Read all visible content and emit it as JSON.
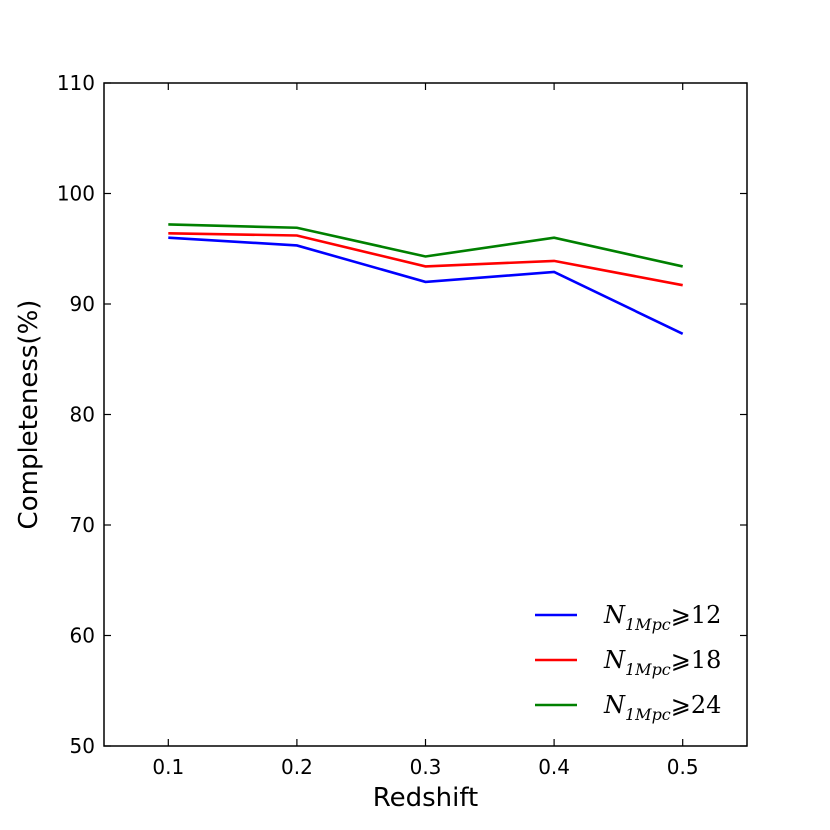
{
  "chart_data": {
    "type": "line",
    "title": "",
    "xlabel": "Redshift",
    "ylabel": "Completeness(%)",
    "x": [
      0.1,
      0.2,
      0.3,
      0.4,
      0.5
    ],
    "xlim": [
      0.05,
      0.55
    ],
    "ylim": [
      50,
      110
    ],
    "xticks": [
      0.1,
      0.2,
      0.3,
      0.4,
      0.5
    ],
    "xtick_labels": [
      "0.1",
      "0.2",
      "0.3",
      "0.4",
      "0.5"
    ],
    "yticks": [
      50,
      60,
      70,
      80,
      90,
      100,
      110
    ],
    "ytick_labels": [
      "50",
      "60",
      "70",
      "80",
      "90",
      "100",
      "110"
    ],
    "grid": false,
    "legend_position": "bottom-right",
    "series": [
      {
        "name": "N_{1Mpc}⩾12",
        "label_main": "N",
        "label_sub": "1Mpc",
        "label_rest": "⩾12",
        "color": "#0000ff",
        "values": [
          96.0,
          95.3,
          92.0,
          92.9,
          87.3
        ]
      },
      {
        "name": "N_{1Mpc}⩾18",
        "label_main": "N",
        "label_sub": "1Mpc",
        "label_rest": "⩾18",
        "color": "#ff0000",
        "values": [
          96.4,
          96.2,
          93.4,
          93.9,
          91.7
        ]
      },
      {
        "name": "N_{1Mpc}⩾24",
        "label_main": "N",
        "label_sub": "1Mpc",
        "label_rest": "⩾24",
        "color": "#008000",
        "values": [
          97.2,
          96.9,
          94.3,
          96.0,
          93.4
        ]
      }
    ]
  }
}
